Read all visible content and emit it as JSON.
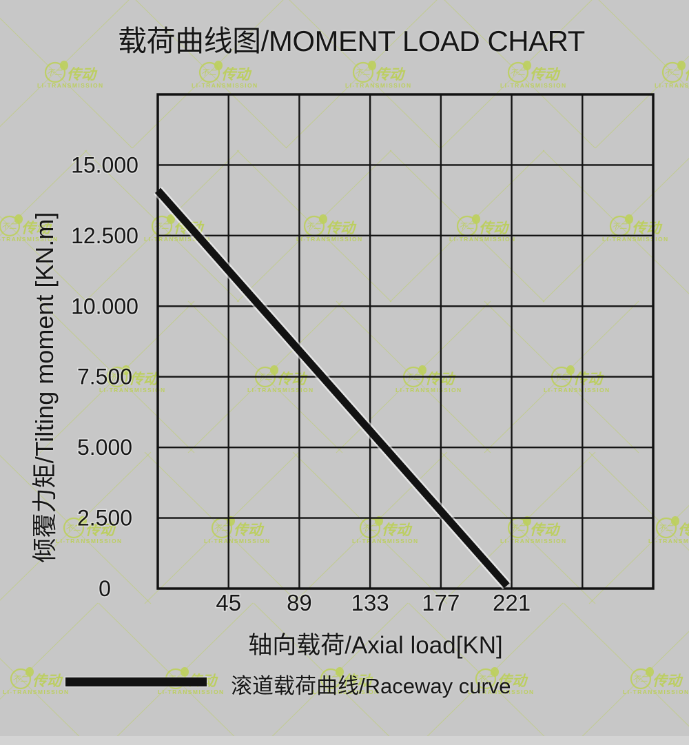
{
  "page": {
    "background_color": "#c7c7c7",
    "text_color": "#161616"
  },
  "chart_data": {
    "type": "line",
    "title": "载荷曲线图/MOMENT LOAD CHART",
    "xlabel": "轴向载荷/Axial load[KN]",
    "ylabel": "倾覆力矩/Tilting moment [KN.m]",
    "xlim": [
      1,
      309
    ],
    "ylim": [
      0,
      17500
    ],
    "grid": true,
    "x_ticks": [
      45,
      89,
      133,
      177,
      221
    ],
    "x_tick_labels": [
      "45",
      "89",
      "133",
      "177",
      "221"
    ],
    "y_ticks": [
      0,
      2500,
      5000,
      7500,
      10000,
      12500,
      15000
    ],
    "y_tick_labels": [
      "0",
      "2.500",
      "5.000",
      "7.500",
      "10.000",
      "12.500",
      "15.000"
    ],
    "legend_position": "bottom-left",
    "series": [
      {
        "name": "滚道载荷曲线/Raceway curve",
        "color": "#121212",
        "points": [
          [
            1,
            14100
          ],
          [
            218,
            100
          ]
        ]
      }
    ]
  },
  "legend": {
    "label": "滚道载荷曲线/Raceway curve"
  },
  "watermark": {
    "logo_text": "不二",
    "brand_text": "传动",
    "sub_text": "LI-TRANSMISSION",
    "color": "#bccf5c"
  }
}
